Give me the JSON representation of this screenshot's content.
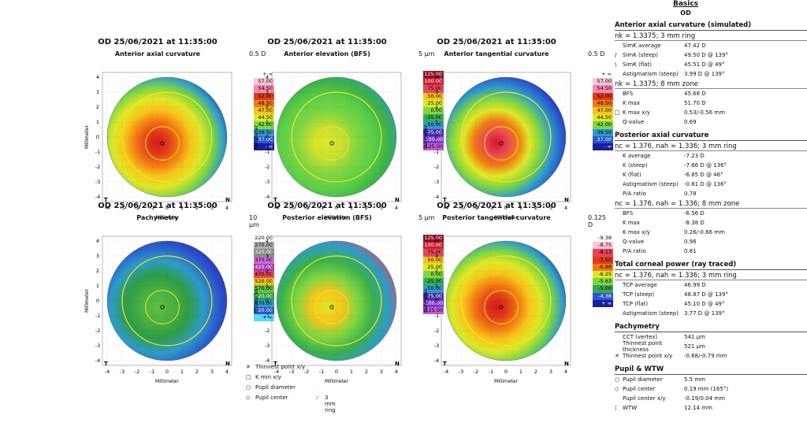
{
  "maps": [
    {
      "id": "ant-axial",
      "title": "OD  25/06/2021 at 11:35:00",
      "subtitle": "Anterior axial curvature",
      "step": "0.5 D",
      "scale": [
        "+ ∞",
        "57.00",
        "54.50",
        "52.00",
        "49.50",
        "47.00",
        "44.50",
        "42.00",
        "39.50",
        "37.00",
        "- ∞"
      ],
      "colors": [
        "#ffffff",
        "#f9c6d8",
        "#f28ab0",
        "#e8455a",
        "#e23a1c",
        "#f27a12",
        "#f7c51a",
        "#dfe828",
        "#7ed642",
        "#3aa653",
        "#2e9bc9",
        "#2a56cc",
        "#1a1f9c"
      ],
      "corner_left": "T",
      "corner_right": "N"
    },
    {
      "id": "ant-elev",
      "title": "OD  25/06/2021 at 11:35:00",
      "subtitle": "Anterior elevation (BFS)",
      "step": "5 µm",
      "scale": [
        "125.00",
        "100.00",
        "75.00",
        "50.00",
        "25.00",
        "0.00",
        "-25.00",
        "-50.00",
        "-75.00",
        "-100.00",
        "-125.00"
      ],
      "colors": [
        "#8a0f22",
        "#c81f2c",
        "#e8455a",
        "#f27a12",
        "#f7c51a",
        "#dfe828",
        "#7ed642",
        "#3ab04a",
        "#2e9bc9",
        "#2a56cc",
        "#4a2ab0",
        "#7a3ac8",
        "#c25ad8"
      ],
      "corner_left": "T",
      "corner_right": "N"
    },
    {
      "id": "ant-tang",
      "title": "OD  25/06/2021 at 11:35:00",
      "subtitle": "Anterior tangential curvature",
      "step": "0.5 D",
      "scale": [
        "+ ∞",
        "57.00",
        "54.50",
        "52.00",
        "49.50",
        "47.00",
        "44.50",
        "42.00",
        "39.50",
        "37.00",
        "- ∞"
      ],
      "colors": [
        "#ffffff",
        "#f9c6d8",
        "#f28ab0",
        "#e8455a",
        "#e23a1c",
        "#f27a12",
        "#f7c51a",
        "#dfe828",
        "#7ed642",
        "#3aa653",
        "#2e9bc9",
        "#2a56cc",
        "#1a1f9c"
      ],
      "corner_left": "T",
      "corner_right": "N"
    },
    {
      "id": "pachy",
      "title": "OD  25/06/2021 at 11:35:00",
      "subtitle": "Pachymetry",
      "step": "10 µm",
      "scale": [
        "220.00",
        "270.00",
        "320.00",
        "370.00",
        "420.00",
        "470.00",
        "520.00",
        "570.00",
        "620.00",
        "670.00",
        "720.00",
        "+ ∞"
      ],
      "colors": [
        "#ffffff",
        "#b0b0b0",
        "#8a8a8a",
        "#d06ad8",
        "#a23ac0",
        "#e8455a",
        "#f27a12",
        "#f7c51a",
        "#5fc242",
        "#2e9e43",
        "#2e9bc9",
        "#2a56cc",
        "#55d8ff"
      ],
      "corner_left": "T",
      "corner_right": "N"
    },
    {
      "id": "post-elev",
      "title": "OD  25/06/2021 at 11:35:00",
      "subtitle": "Posterior elevation (BFS)",
      "step": "5 µm",
      "scale": [
        "125.00",
        "100.00",
        "75.00",
        "50.00",
        "25.00",
        "0.00",
        "-25.00",
        "-50.00",
        "-75.00",
        "-100.00",
        "-125.00"
      ],
      "colors": [
        "#8a0f22",
        "#c81f2c",
        "#e8455a",
        "#f27a12",
        "#f7c51a",
        "#dfe828",
        "#7ed642",
        "#3ab04a",
        "#2e9bc9",
        "#2a56cc",
        "#4a2ab0",
        "#7a3ac8",
        "#c25ad8"
      ],
      "corner_left": "T",
      "corner_right": "N"
    },
    {
      "id": "post-tang",
      "title": "OD  25/06/2021 at 11:35:00",
      "subtitle": "Posterior tangential curvature",
      "step": "0.125 D",
      "scale": [
        "-9.38",
        "-8.75",
        "-8.13",
        "-7.50",
        "-6.88",
        "-6.25",
        "-5.63",
        "-5.00",
        "-4.38",
        "+ ∞"
      ],
      "colors": [
        "#ffffff",
        "#f9c6d8",
        "#f28ab0",
        "#e8455a",
        "#e23a1c",
        "#f27a12",
        "#f7c51a",
        "#dfe828",
        "#7ed642",
        "#3aa653",
        "#2e9bc9",
        "#2a56cc",
        "#1a1f9c"
      ],
      "corner_left": "T",
      "corner_right": "N"
    }
  ],
  "axis": {
    "ylabel": "Millimeter",
    "xlabel": "Millimeter",
    "ticks": [
      "-4",
      "-3",
      "-2",
      "-1",
      "0",
      "1",
      "2",
      "3",
      "4"
    ],
    "yticks": [
      "4",
      "3",
      "2",
      "1",
      "0",
      "-1",
      "-2",
      "-3",
      "-4"
    ]
  },
  "legend": [
    {
      "sym": "✕",
      "label": "Thinnest point x/y"
    },
    {
      "sym": "□",
      "label": "K min x/y"
    },
    {
      "sym": "○",
      "label": "Pupil diameter"
    },
    {
      "sym": "◇",
      "label": "Pupil center"
    }
  ],
  "legend_ring": {
    "sym": "⁄",
    "label": "3 mm ring"
  },
  "panel": {
    "title": "Basics",
    "eye": "OD",
    "sections": [
      {
        "header": "Anterior axial curvature (simulated)",
        "sub": "nk = 1.3375; 3 mm ring",
        "rows": [
          [
            "",
            "SimK average",
            "47.42 D"
          ],
          [
            "/",
            "SimK (steep)",
            "49.50 D @ 139°"
          ],
          [
            "\\",
            "SimK (flat)",
            "45.51 D @ 49°"
          ],
          [
            "",
            "Astigmatism (steep)",
            "3.99 D @ 139°"
          ]
        ]
      },
      {
        "header": "",
        "sub": "nk = 1.3375; 8 mm zone",
        "rows": [
          [
            "",
            "BFS",
            "45.68 D"
          ],
          [
            "",
            "K max",
            "51.70 D"
          ],
          [
            "□",
            "K max x/y",
            "0.53/-0.56 mm"
          ],
          [
            "",
            "Q-value",
            "0.69"
          ]
        ]
      },
      {
        "header": "Posterior axial curvature",
        "sub": "nc = 1.376, nah = 1.336; 3 mm ring",
        "rows": [
          [
            "",
            "K average",
            "-7.23 D"
          ],
          [
            "",
            "K (steep)",
            "-7.66 D @ 136°"
          ],
          [
            "",
            "K (flat)",
            "-6.85 D @ 46°"
          ],
          [
            "",
            "Astigmatism (steep)",
            "-0.81 D @ 136°"
          ],
          [
            "",
            "P/A ratio",
            "0.78"
          ]
        ]
      },
      {
        "header": "",
        "sub": "nc = 1.376, nah = 1.336; 8 mm zone",
        "rows": [
          [
            "",
            "BFS",
            "-6.56 D"
          ],
          [
            "",
            "K max",
            "-8.38 D"
          ],
          [
            "",
            "K max x/y",
            "0.26/-0.66 mm"
          ],
          [
            "",
            "Q-value",
            "0.96"
          ],
          [
            "",
            "P/A ratio",
            "0.81"
          ]
        ]
      },
      {
        "header": "Total corneal power (ray traced)",
        "sub": "nc = 1.376, nah = 1.336; 3 mm ring",
        "rows": [
          [
            "",
            "TCP average",
            "46.99 D"
          ],
          [
            "",
            "TCP (steep)",
            "48.87 D @ 139°"
          ],
          [
            "",
            "TCP (flat)",
            "45.10 D @ 49°"
          ],
          [
            "",
            "Astigmatism (steep)",
            "3.77 D @ 139°"
          ]
        ]
      },
      {
        "header": "Pachymetry",
        "sub": "",
        "rows": [
          [
            "",
            "CCT (vertex)",
            "541 µm"
          ],
          [
            "",
            "Thinnest point thickness",
            "521 µm"
          ],
          [
            "✕",
            "Thinnest point x/y",
            "-0.68/-0.79 mm"
          ]
        ]
      },
      {
        "header": "Pupil & WTW",
        "sub": "",
        "rows": [
          [
            "○",
            "Pupil diameter",
            "5.5 mm"
          ],
          [
            "◇",
            "Pupil center",
            "0.19 mm (165°)"
          ],
          [
            "",
            "Pupil center x/y",
            "-0.19/0.04 mm"
          ],
          [
            "¦",
            "WTW",
            "12.14 mm"
          ]
        ]
      }
    ]
  }
}
